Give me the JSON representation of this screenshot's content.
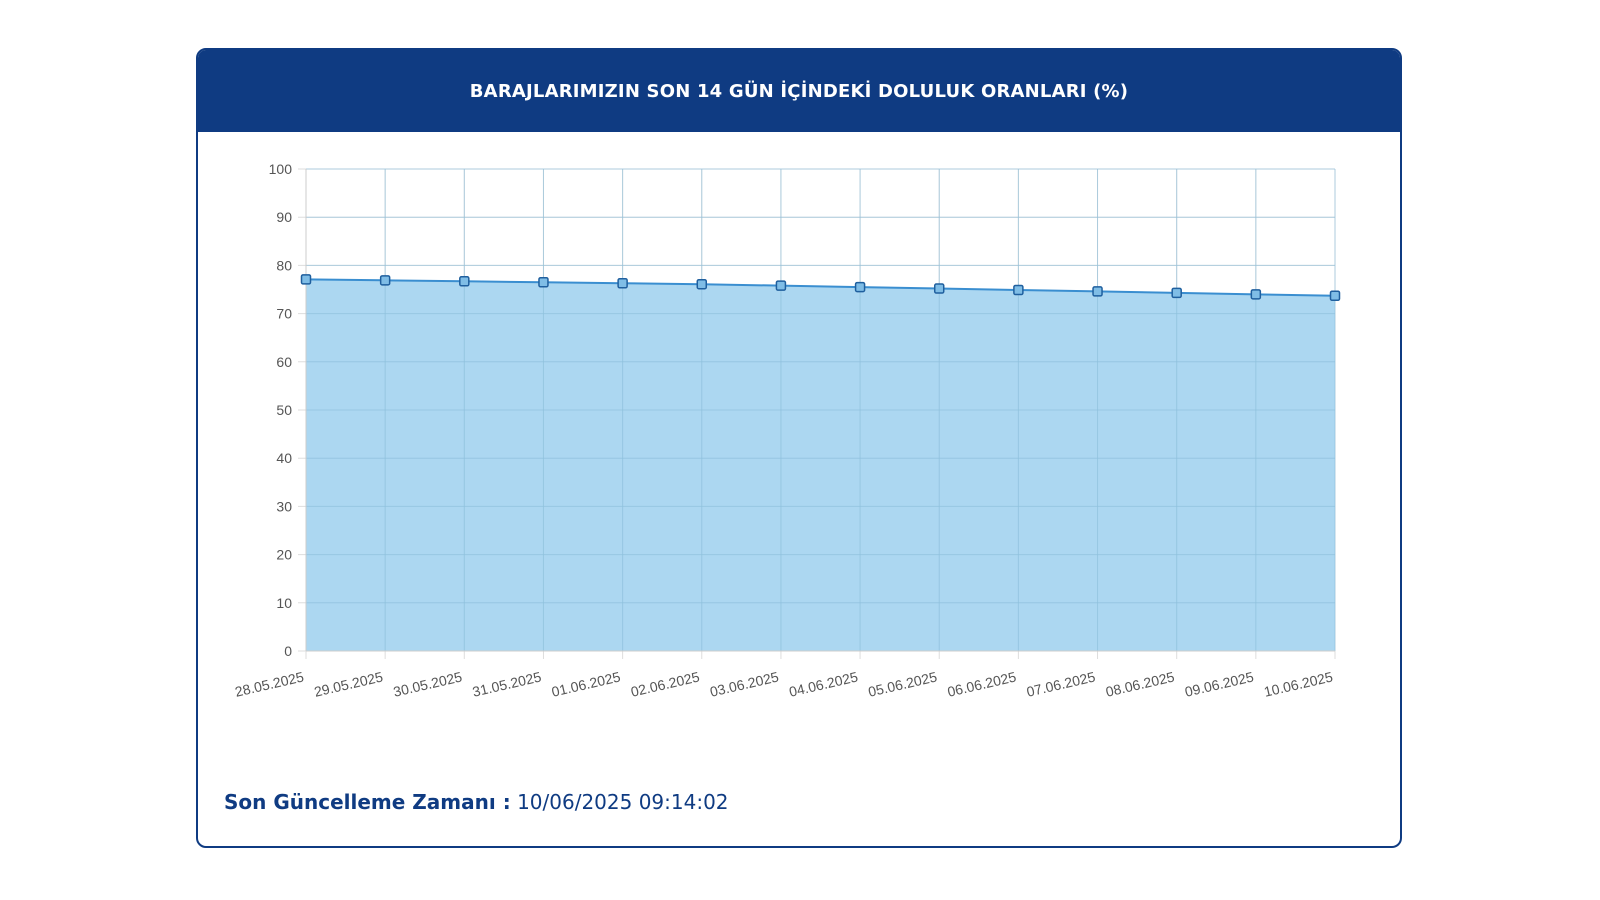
{
  "header": {
    "title": "BARAJLARIMIZIN SON 14 GÜN İÇİNDEKİ DOLULUK ORANLARI (%)"
  },
  "footer": {
    "label": "Son Güncelleme Zamanı :",
    "value": "10/06/2025 09:14:02"
  },
  "colors": {
    "header_bg": "#0f3b82",
    "line": "#3a8ed0",
    "fill": "#9dd0ee",
    "marker_fill": "#7fbde6",
    "grid": "#dddddd"
  },
  "chart_data": {
    "type": "area",
    "x": [
      "28.05.2025",
      "29.05.2025",
      "30.05.2025",
      "31.05.2025",
      "01.06.2025",
      "02.06.2025",
      "03.06.2025",
      "04.06.2025",
      "05.06.2025",
      "06.06.2025",
      "07.06.2025",
      "08.06.2025",
      "09.06.2025",
      "10.06.2025"
    ],
    "series": [
      {
        "values": [
          77.1,
          76.9,
          76.7,
          76.5,
          76.3,
          76.1,
          75.8,
          75.5,
          75.2,
          74.9,
          74.6,
          74.3,
          74.0,
          73.7
        ]
      }
    ],
    "ylim": [
      0,
      100
    ],
    "yticks": [
      0,
      10,
      20,
      30,
      40,
      50,
      60,
      70,
      80,
      90,
      100
    ],
    "grid": true,
    "legend": "none"
  }
}
